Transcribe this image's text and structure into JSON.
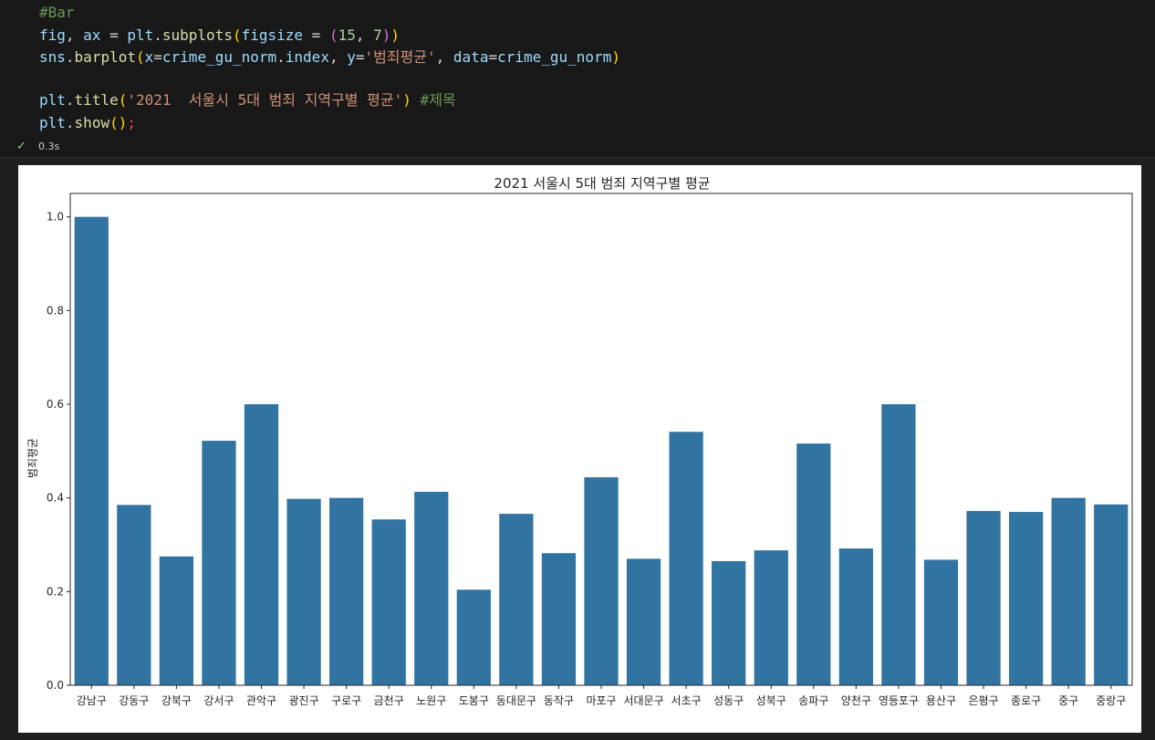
{
  "code": {
    "lines": [
      [
        {
          "t": "#Bar",
          "c": "comment"
        }
      ],
      [
        {
          "t": "fig",
          "c": "var"
        },
        {
          "t": ", ",
          "c": "plain"
        },
        {
          "t": "ax",
          "c": "var"
        },
        {
          "t": " = ",
          "c": "plain"
        },
        {
          "t": "plt",
          "c": "var"
        },
        {
          "t": ".",
          "c": "plain"
        },
        {
          "t": "subplots",
          "c": "func"
        },
        {
          "t": "(",
          "c": "br1"
        },
        {
          "t": "figsize",
          "c": "var"
        },
        {
          "t": " = ",
          "c": "plain"
        },
        {
          "t": "(",
          "c": "br2"
        },
        {
          "t": "15",
          "c": "num"
        },
        {
          "t": ", ",
          "c": "plain"
        },
        {
          "t": "7",
          "c": "num"
        },
        {
          "t": ")",
          "c": "br2"
        },
        {
          "t": ")",
          "c": "br1"
        }
      ],
      [
        {
          "t": "sns",
          "c": "var"
        },
        {
          "t": ".",
          "c": "plain"
        },
        {
          "t": "barplot",
          "c": "func"
        },
        {
          "t": "(",
          "c": "br1"
        },
        {
          "t": "x",
          "c": "var"
        },
        {
          "t": "=",
          "c": "plain"
        },
        {
          "t": "crime_gu_norm",
          "c": "var"
        },
        {
          "t": ".",
          "c": "plain"
        },
        {
          "t": "index",
          "c": "var"
        },
        {
          "t": ", ",
          "c": "plain"
        },
        {
          "t": "y",
          "c": "var"
        },
        {
          "t": "=",
          "c": "plain"
        },
        {
          "t": "'범죄평균'",
          "c": "str"
        },
        {
          "t": ", ",
          "c": "plain"
        },
        {
          "t": "data",
          "c": "var"
        },
        {
          "t": "=",
          "c": "plain"
        },
        {
          "t": "crime_gu_norm",
          "c": "var"
        },
        {
          "t": ")",
          "c": "br1"
        }
      ],
      [],
      [
        {
          "t": "plt",
          "c": "var"
        },
        {
          "t": ".",
          "c": "plain"
        },
        {
          "t": "title",
          "c": "func"
        },
        {
          "t": "(",
          "c": "br1"
        },
        {
          "t": "'2021  서울시 5대 범죄 지역구별 평균'",
          "c": "str"
        },
        {
          "t": ")",
          "c": "br1"
        },
        {
          "t": " ",
          "c": "plain"
        },
        {
          "t": "#제목",
          "c": "comment"
        }
      ],
      [
        {
          "t": "plt",
          "c": "var"
        },
        {
          "t": ".",
          "c": "plain"
        },
        {
          "t": "show",
          "c": "func"
        },
        {
          "t": "(",
          "c": "br1"
        },
        {
          "t": ")",
          "c": "br1"
        },
        {
          "t": ";",
          "c": "err"
        }
      ]
    ]
  },
  "status": {
    "icon": "check-icon",
    "time": "0.3s"
  },
  "chart_data": {
    "type": "bar",
    "title": "2021  서울시 5대 범죄 지역구별 평균",
    "xlabel": "",
    "ylabel": "범죄평균",
    "ylim": [
      0,
      1.05
    ],
    "yticks": [
      "0.0",
      "0.2",
      "0.4",
      "0.6",
      "0.8",
      "1.0"
    ],
    "bar_color": "#3274a1",
    "categories": [
      "강남구",
      "강동구",
      "강북구",
      "강서구",
      "관악구",
      "광진구",
      "구로구",
      "금천구",
      "노원구",
      "도봉구",
      "동대문구",
      "동작구",
      "마포구",
      "서대문구",
      "서초구",
      "성동구",
      "성북구",
      "송파구",
      "양천구",
      "영등포구",
      "용산구",
      "은평구",
      "종로구",
      "중구",
      "중랑구"
    ],
    "values": [
      1.0,
      0.385,
      0.275,
      0.522,
      0.6,
      0.398,
      0.4,
      0.354,
      0.413,
      0.204,
      0.366,
      0.282,
      0.444,
      0.27,
      0.541,
      0.265,
      0.288,
      0.516,
      0.292,
      0.6,
      0.268,
      0.372,
      0.37,
      0.4,
      0.386
    ]
  }
}
